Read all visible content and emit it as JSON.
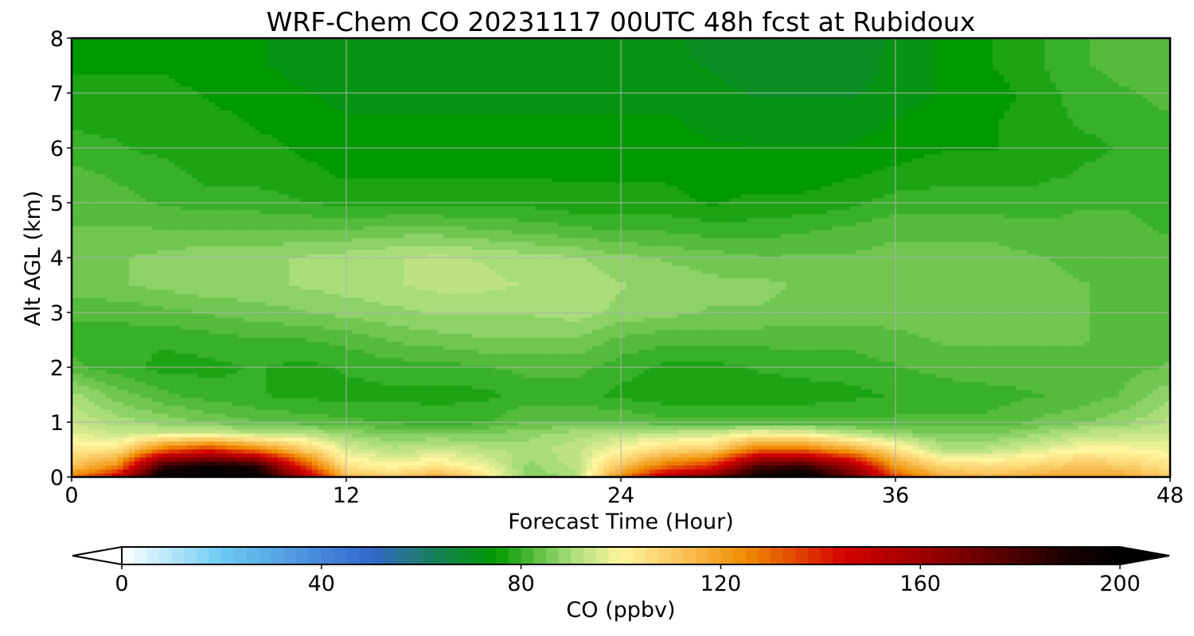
{
  "chart_data": {
    "type": "heatmap",
    "title": "WRF-Chem CO  20231117 00UTC 48h fcst at Rubidoux",
    "xlabel": "Forecast Time (Hour)",
    "ylabel": "Alt AGL (km)",
    "xlim": [
      0,
      48
    ],
    "ylim": [
      0,
      8
    ],
    "xticks": [
      "0",
      "12",
      "24",
      "36",
      "48"
    ],
    "yticks": [
      "0",
      "1",
      "2",
      "3",
      "4",
      "5",
      "6",
      "7",
      "8"
    ],
    "grid": true,
    "colorbar": {
      "label": "CO  (ppbv)",
      "range": [
        0,
        200
      ],
      "ticks": [
        "0",
        "40",
        "80",
        "120",
        "160",
        "200"
      ],
      "extend": "both",
      "stops": [
        {
          "v": 0,
          "c": "#ffffff"
        },
        {
          "v": 20,
          "c": "#6ccbf3"
        },
        {
          "v": 50,
          "c": "#3366cc"
        },
        {
          "v": 60,
          "c": "#1f7a6e"
        },
        {
          "v": 75,
          "c": "#009900"
        },
        {
          "v": 90,
          "c": "#a8dd78"
        },
        {
          "v": 100,
          "c": "#fff59e"
        },
        {
          "v": 112,
          "c": "#f9c45b"
        },
        {
          "v": 125,
          "c": "#f08c00"
        },
        {
          "v": 145,
          "c": "#d40000"
        },
        {
          "v": 165,
          "c": "#8c0000"
        },
        {
          "v": 190,
          "c": "#170000"
        },
        {
          "v": 200,
          "c": "#000000"
        }
      ]
    },
    "field": {
      "x": [
        0,
        2,
        4,
        6,
        8,
        10,
        12,
        14,
        16,
        18,
        20,
        22,
        24,
        26,
        28,
        30,
        32,
        34,
        36,
        38,
        40,
        42,
        44,
        46,
        48
      ],
      "z": [
        0,
        0.2,
        0.5,
        0.8,
        1,
        1.5,
        2,
        2.5,
        3,
        3.5,
        4,
        4.5,
        5,
        5.5,
        6,
        6.5,
        7,
        7.5,
        8
      ],
      "profiles": [
        [
          125,
          112,
          104,
          96,
          94,
          90,
          82,
          80,
          82,
          85,
          85,
          84,
          83,
          82,
          80,
          78,
          77,
          76,
          75
        ],
        [
          150,
          125,
          105,
          94,
          90,
          85,
          80,
          80,
          82,
          86,
          86,
          84,
          82,
          81,
          79,
          78,
          77,
          76,
          75
        ],
        [
          200,
          185,
          130,
          95,
          88,
          82,
          78,
          79,
          83,
          87,
          87,
          84,
          81,
          80,
          78,
          77,
          77,
          76,
          74
        ],
        [
          200,
          195,
          140,
          94,
          86,
          80,
          78,
          80,
          84,
          88,
          88,
          84,
          80,
          78,
          77,
          77,
          76,
          75,
          74
        ],
        [
          200,
          190,
          128,
          92,
          84,
          79,
          79,
          81,
          85,
          88,
          88,
          84,
          80,
          78,
          77,
          76,
          75,
          74,
          74
        ],
        [
          160,
          140,
          112,
          92,
          83,
          78,
          78,
          81,
          86,
          89,
          89,
          84,
          79,
          77,
          76,
          75,
          74,
          73,
          73
        ],
        [
          115,
          104,
          96,
          88,
          82,
          78,
          79,
          82,
          87,
          90,
          90,
          84,
          78,
          76,
          75,
          74,
          73,
          73,
          73
        ],
        [
          110,
          100,
          92,
          86,
          81,
          78,
          80,
          84,
          88,
          91,
          91,
          85,
          78,
          76,
          75,
          74,
          73,
          72,
          72
        ],
        [
          118,
          104,
          94,
          86,
          80,
          78,
          80,
          85,
          89,
          92,
          92,
          85,
          78,
          76,
          75,
          74,
          73,
          72,
          72
        ],
        [
          105,
          98,
          92,
          86,
          81,
          78,
          81,
          86,
          89,
          92,
          91,
          84,
          78,
          76,
          75,
          74,
          73,
          72,
          72
        ],
        [
          86,
          88,
          90,
          88,
          84,
          80,
          82,
          86,
          89,
          91,
          90,
          83,
          78,
          76,
          75,
          74,
          73,
          72,
          72
        ],
        [
          90,
          92,
          93,
          90,
          84,
          80,
          82,
          86,
          90,
          91,
          89,
          82,
          77,
          76,
          75,
          74,
          73,
          72,
          72
        ],
        [
          125,
          112,
          100,
          92,
          84,
          78,
          80,
          83,
          88,
          89,
          87,
          81,
          77,
          76,
          75,
          74,
          73,
          72,
          72
        ],
        [
          155,
          130,
          108,
          93,
          82,
          77,
          78,
          82,
          87,
          88,
          86,
          81,
          77,
          76,
          75,
          74,
          73,
          72,
          72
        ],
        [
          170,
          140,
          110,
          94,
          82,
          77,
          78,
          82,
          86,
          87,
          85,
          80,
          76,
          75,
          74,
          73,
          72,
          71,
          70
        ],
        [
          195,
          180,
          130,
          100,
          82,
          77,
          79,
          82,
          86,
          87,
          84,
          80,
          77,
          75,
          74,
          72,
          71,
          70,
          69
        ],
        [
          200,
          185,
          130,
          98,
          82,
          77,
          80,
          82,
          85,
          86,
          84,
          81,
          77,
          75,
          74,
          72,
          71,
          70,
          69
        ],
        [
          175,
          160,
          120,
          92,
          82,
          78,
          80,
          82,
          85,
          86,
          84,
          82,
          78,
          76,
          74,
          72,
          71,
          70,
          69
        ],
        [
          135,
          122,
          105,
          88,
          82,
          79,
          81,
          83,
          85,
          86,
          85,
          83,
          80,
          77,
          75,
          74,
          72,
          72,
          72
        ],
        [
          118,
          108,
          92,
          86,
          82,
          80,
          82,
          84,
          85,
          86,
          85,
          83,
          80,
          78,
          76,
          75,
          74,
          74,
          74
        ],
        [
          115,
          106,
          92,
          86,
          82,
          80,
          83,
          84,
          85,
          86,
          85,
          83,
          80,
          78,
          76,
          76,
          75,
          76,
          76
        ],
        [
          118,
          108,
          96,
          88,
          84,
          81,
          83,
          84,
          85,
          85,
          84,
          82,
          80,
          78,
          77,
          77,
          77,
          78,
          78
        ],
        [
          120,
          112,
          100,
          92,
          86,
          82,
          83,
          84,
          84,
          84,
          83,
          82,
          81,
          79,
          78,
          79,
          80,
          81,
          81
        ],
        [
          118,
          110,
          100,
          93,
          88,
          84,
          83,
          83,
          83,
          83,
          82,
          82,
          81,
          80,
          79,
          80,
          81,
          82,
          82
        ],
        [
          110,
          104,
          98,
          94,
          92,
          88,
          84,
          83,
          82,
          82,
          82,
          81,
          80,
          80,
          80,
          81,
          82,
          83,
          83
        ]
      ]
    }
  }
}
